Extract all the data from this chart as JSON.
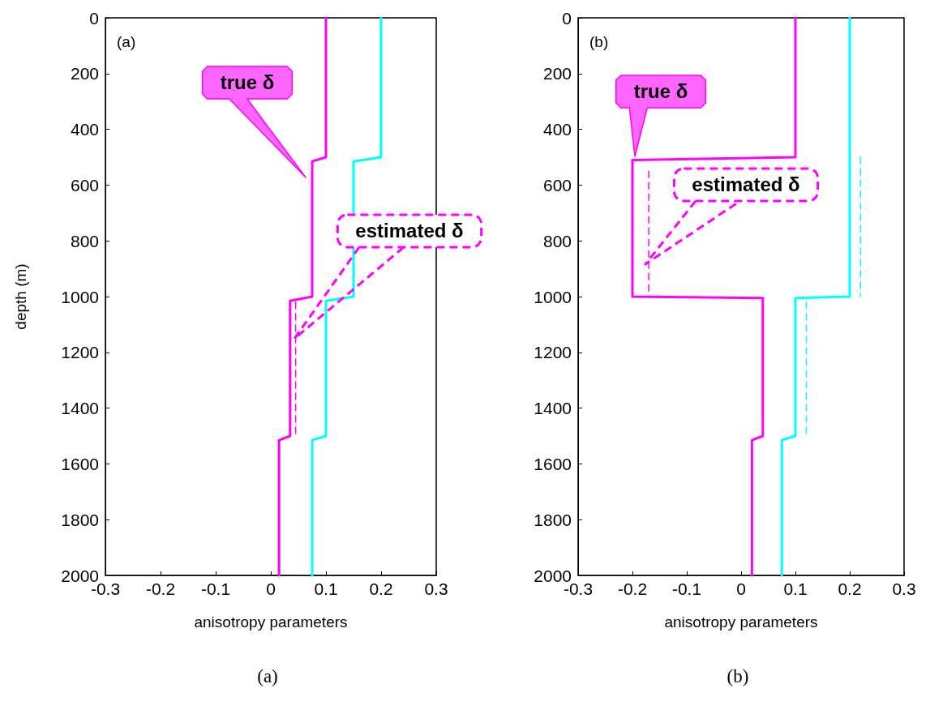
{
  "chart_data": [
    {
      "type": "line",
      "xlabel": "anisotropy parameters",
      "ylabel": "depth (m)",
      "xlim": [
        -0.3,
        0.3
      ],
      "xticks": [
        -0.3,
        -0.2,
        -0.1,
        0,
        0.1,
        0.2,
        0.3
      ],
      "ylim": [
        2000,
        0
      ],
      "yticks": [
        0,
        200,
        400,
        600,
        800,
        1000,
        1200,
        1400,
        1600,
        1800,
        2000
      ],
      "grid": false,
      "marker": "none",
      "annotations": [
        "(a)",
        "true δ",
        "estimated δ",
        "(a)"
      ],
      "series": [
        {
          "color": "#ff00ff",
          "line_style": "solid",
          "x": [
            0.1,
            0.1,
            0.075,
            0.075,
            0.035,
            0.035,
            0.015,
            0.015
          ],
          "values": [
            0,
            500,
            515,
            1000,
            1015,
            1500,
            1515,
            2000
          ]
        },
        {
          "color": "#00ffff",
          "line_style": "solid",
          "x": [
            0.2,
            0.2,
            0.15,
            0.15,
            0.1,
            0.1,
            0.075,
            0.075
          ],
          "values": [
            0,
            500,
            515,
            1000,
            1015,
            1500,
            1515,
            2000
          ]
        },
        {
          "color": "#ff00ff",
          "line_style": "dashed",
          "x": [
            0.045,
            0.045
          ],
          "values": [
            1020,
            1500
          ]
        }
      ]
    },
    {
      "type": "line",
      "xlabel": "anisotropy parameters",
      "xlim": [
        -0.3,
        0.3
      ],
      "xticks": [
        -0.3,
        -0.2,
        -0.1,
        0,
        0.1,
        0.2,
        0.3
      ],
      "ylim": [
        2000,
        0
      ],
      "yticks": [
        0,
        200,
        400,
        600,
        800,
        1000,
        1200,
        1400,
        1600,
        1800,
        2000
      ],
      "grid": false,
      "marker": "none",
      "annotations": [
        "(b)",
        "true δ",
        "estimated δ",
        "(b)"
      ],
      "series": [
        {
          "color": "#ff00ff",
          "line_style": "solid",
          "x": [
            0.1,
            0.1,
            -0.2,
            -0.2,
            0.04,
            0.04,
            0.02,
            0.02
          ],
          "values": [
            0,
            500,
            510,
            1000,
            1005,
            1500,
            1515,
            2000
          ]
        },
        {
          "color": "#00ffff",
          "line_style": "solid",
          "x": [
            0.2,
            0.2,
            0.1,
            0.1,
            0.075,
            0.075
          ],
          "values": [
            0,
            1000,
            1005,
            1500,
            1515,
            2000
          ]
        },
        {
          "color": "#ff00ff",
          "line_style": "dashed",
          "x": [
            -0.17,
            -0.17
          ],
          "values": [
            550,
            1000
          ]
        },
        {
          "color": "#00ffff",
          "line_style": "dashed",
          "x": [
            0.22,
            0.22
          ],
          "values": [
            500,
            1000
          ]
        },
        {
          "color": "#00ffff",
          "line_style": "dashed",
          "x": [
            0.12,
            0.12
          ],
          "values": [
            1020,
            1500
          ]
        }
      ]
    }
  ]
}
